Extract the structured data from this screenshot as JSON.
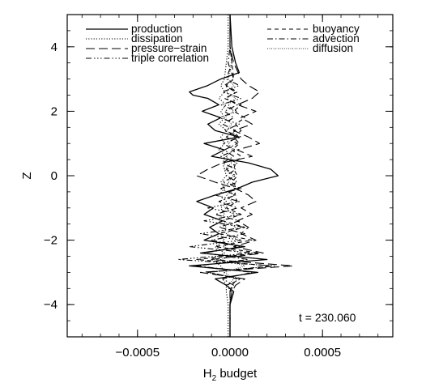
{
  "chart_data": {
    "type": "line",
    "title": "",
    "xlabel": "H",
    "xlabel_subscript": "2",
    "xlabel_suffix": " budget",
    "ylabel": "Z",
    "xlim": [
      -0.00088,
      0.00088
    ],
    "ylim": [
      -5,
      5
    ],
    "xticks": [
      -0.0005,
      0.0,
      0.0005
    ],
    "xtick_labels": [
      "−0.0005",
      "0.0000",
      "0.0005"
    ],
    "yticks": [
      -4,
      -2,
      0,
      2,
      4
    ],
    "ytick_labels": [
      "−4",
      "−2",
      "0",
      "2",
      "4"
    ],
    "grid": false,
    "legend_position": "top",
    "annotation": "t = 230.060",
    "series": [
      {
        "name": "production",
        "dash": "solid",
        "width": 1.3,
        "y": [
          5,
          4,
          3.5,
          3.2,
          3.0,
          2.8,
          2.6,
          2.5,
          2.4,
          2.2,
          2.0,
          1.8,
          1.6,
          1.4,
          1.2,
          1.0,
          0.8,
          0.6,
          0.4,
          0.2,
          0.0,
          -0.2,
          -0.4,
          -0.6,
          -0.8,
          -1.0,
          -1.2,
          -1.4,
          -1.6,
          -1.8,
          -2.0,
          -2.2,
          -2.4,
          -2.6,
          -2.8,
          -3.0,
          -3.2,
          -3.4,
          -3.6,
          -4.0,
          -5.0
        ],
        "x": [
          0.0,
          1e-05,
          3e-05,
          5e-05,
          -5e-05,
          -0.00012,
          -0.00022,
          -0.0002,
          -0.00012,
          -6e-05,
          -0.00015,
          -5e-05,
          -0.00012,
          -8e-05,
          5e-05,
          -0.00014,
          -3e-05,
          -0.0001,
          0.0001,
          0.00022,
          0.00026,
          0.00012,
          4e-05,
          -8e-05,
          -0.00018,
          -9e-05,
          -0.00014,
          -4e-05,
          -0.00011,
          -6e-05,
          -0.00014,
          8e-05,
          -0.00016,
          0.0002,
          -0.00022,
          0.00015,
          -8e-05,
          -2e-05,
          2e-05,
          0.0,
          0.0
        ]
      },
      {
        "name": "dissipation",
        "dash": "dot",
        "width": 1.1,
        "y": [
          5,
          4,
          3.5,
          3.0,
          2.8,
          2.6,
          2.4,
          2.2,
          2.0,
          1.8,
          1.6,
          1.4,
          1.2,
          1.0,
          0.8,
          0.6,
          0.4,
          0.2,
          0.0,
          -0.2,
          -0.4,
          -0.6,
          -0.8,
          -1.0,
          -1.2,
          -1.4,
          -1.6,
          -1.8,
          -2.0,
          -2.2,
          -2.4,
          -2.6,
          -2.8,
          -3.0,
          -3.2,
          -3.4,
          -3.6,
          -4.0,
          -5.0
        ],
        "x": [
          -1e-05,
          -1e-05,
          -2e-05,
          -3e-05,
          -5e-05,
          -3e-05,
          -6e-05,
          -2e-05,
          -5e-05,
          -3e-05,
          -6e-05,
          -2e-05,
          -5e-05,
          -3e-05,
          -6e-05,
          -2e-05,
          -4e-05,
          -3e-05,
          -2e-05,
          -5e-05,
          -3e-05,
          -6e-05,
          -2e-05,
          -5e-05,
          -3e-05,
          -6e-05,
          -2e-05,
          -5e-05,
          -3e-05,
          -8e-05,
          -3e-05,
          -0.0001,
          -5e-05,
          -3e-05,
          -4e-05,
          -2e-05,
          -2e-05,
          -1e-05,
          -1e-05
        ]
      },
      {
        "name": "pressure−strain",
        "dash": "longdash",
        "width": 1.1,
        "y": [
          5,
          4,
          3.5,
          3.0,
          2.8,
          2.6,
          2.4,
          2.2,
          2.0,
          1.8,
          1.6,
          1.4,
          1.2,
          1.0,
          0.8,
          0.6,
          0.4,
          0.2,
          0.0,
          -0.2,
          -0.4,
          -0.6,
          -0.8,
          -1.0,
          -1.2,
          -1.4,
          -1.6,
          -1.8,
          -2.0,
          -2.2,
          -2.4,
          -2.6,
          -2.8,
          -3.0,
          -3.2,
          -3.4,
          -3.6,
          -4.0,
          -5.0
        ],
        "x": [
          0.0,
          0.0,
          2e-05,
          6e-05,
          0.0001,
          0.00016,
          0.00012,
          4e-05,
          0.00014,
          6e-05,
          0.00012,
          2e-05,
          0.0001,
          0.00016,
          4e-05,
          0.00012,
          -4e-05,
          -0.00012,
          -0.00018,
          -8e-05,
          3e-05,
          0.0001,
          0.00014,
          6e-05,
          0.00012,
          4e-05,
          0.0001,
          6e-05,
          0.00014,
          2e-05,
          0.00018,
          -0.0001,
          0.00034,
          -0.00016,
          8e-05,
          3e-05,
          1e-05,
          0.0,
          0.0
        ]
      },
      {
        "name": "triple correlation",
        "dash": "dashdotdotdot",
        "width": 1.1,
        "y": [
          5,
          4,
          3.5,
          3.0,
          2.8,
          2.6,
          2.4,
          2.2,
          2.0,
          1.8,
          1.6,
          1.4,
          1.2,
          1.0,
          0.8,
          0.6,
          0.4,
          0.2,
          0.0,
          -0.2,
          -0.4,
          -0.6,
          -0.8,
          -1.0,
          -1.2,
          -1.4,
          -1.6,
          -1.8,
          -2.0,
          -2.2,
          -2.4,
          -2.6,
          -2.8,
          -3.0,
          -3.2,
          -3.4,
          -3.6,
          -4.0,
          -5.0
        ],
        "x": [
          0.0,
          0.0,
          1e-05,
          -2e-05,
          5e-05,
          -4e-05,
          6e-05,
          -5e-05,
          4e-05,
          -6e-05,
          5e-05,
          -3e-05,
          6e-05,
          -4e-05,
          3e-05,
          -5e-05,
          4e-05,
          -2e-05,
          3e-05,
          -4e-05,
          6e-05,
          -8e-05,
          5e-05,
          -0.00012,
          6e-05,
          -0.00014,
          8e-05,
          -0.00016,
          6e-05,
          -0.00022,
          0.00012,
          -0.00028,
          0.00024,
          -0.00012,
          6e-05,
          -2e-05,
          1e-05,
          0.0,
          0.0
        ]
      },
      {
        "name": "buoyancy",
        "dash": "dash",
        "width": 1.1,
        "y": [
          5,
          4,
          3.5,
          3.0,
          2.8,
          2.6,
          2.4,
          2.2,
          2.0,
          1.8,
          1.6,
          1.4,
          1.2,
          1.0,
          0.8,
          0.6,
          0.4,
          0.2,
          0.0,
          -0.2,
          -0.4,
          -0.6,
          -0.8,
          -1.0,
          -1.2,
          -1.4,
          -1.6,
          -1.8,
          -2.0,
          -2.2,
          -2.4,
          -2.6,
          -2.8,
          -3.0,
          -3.2,
          -3.4,
          -3.6,
          -4.0,
          -5.0
        ],
        "x": [
          0.0,
          0.0,
          1e-05,
          2e-05,
          -2e-05,
          4e-05,
          -3e-05,
          6e-05,
          2e-05,
          8e-05,
          3e-05,
          6e-05,
          2e-05,
          5e-05,
          1e-05,
          6e-05,
          3e-05,
          2e-05,
          4e-05,
          1e-05,
          5e-05,
          2e-05,
          4e-05,
          -2e-05,
          6e-05,
          -4e-05,
          8e-05,
          -6e-05,
          0.00012,
          -8e-05,
          0.00016,
          -0.00018,
          0.00022,
          -0.00012,
          4e-05,
          1e-05,
          0.0,
          0.0,
          0.0
        ]
      },
      {
        "name": "advection",
        "dash": "dashdot",
        "width": 1.1,
        "y": [
          5,
          4,
          3.5,
          3.0,
          2.8,
          2.6,
          2.4,
          2.2,
          2.0,
          1.8,
          1.6,
          1.4,
          1.2,
          1.0,
          0.8,
          0.6,
          0.4,
          0.2,
          0.0,
          -0.2,
          -0.4,
          -0.6,
          -0.8,
          -1.0,
          -1.2,
          -1.4,
          -1.6,
          -1.8,
          -2.0,
          -2.2,
          -2.4,
          -2.6,
          -2.8,
          -3.0,
          -3.2,
          -3.4,
          -3.6,
          -4.0,
          -5.0
        ],
        "x": [
          0.0,
          0.0,
          -1e-05,
          2e-05,
          -3e-05,
          3e-05,
          -2e-05,
          4e-05,
          -3e-05,
          2e-05,
          -4e-05,
          3e-05,
          -2e-05,
          4e-05,
          -3e-05,
          2e-05,
          -4e-05,
          3e-05,
          -2e-05,
          4e-05,
          -5e-05,
          3e-05,
          -6e-05,
          4e-05,
          -8e-05,
          5e-05,
          -6e-05,
          8e-05,
          -0.0001,
          6e-05,
          -0.00014,
          0.0001,
          -0.00018,
          0.00012,
          -4e-05,
          2e-05,
          0.0,
          0.0,
          0.0
        ]
      },
      {
        "name": "diffusion",
        "dash": "finedot",
        "width": 1.0,
        "y": [
          5,
          4,
          3.5,
          3.0,
          2.8,
          2.6,
          2.4,
          2.2,
          2.0,
          1.8,
          1.6,
          1.4,
          1.2,
          1.0,
          0.8,
          0.6,
          0.4,
          0.2,
          0.0,
          -0.2,
          -0.4,
          -0.6,
          -0.8,
          -1.0,
          -1.2,
          -1.4,
          -1.6,
          -1.8,
          -2.0,
          -2.2,
          -2.4,
          -2.6,
          -2.8,
          -3.0,
          -3.2,
          -3.4,
          -3.6,
          -4.0,
          -5.0
        ],
        "x": [
          0.0,
          0.0,
          1e-05,
          -1e-05,
          2e-05,
          -2e-05,
          3e-05,
          -1e-05,
          2e-05,
          -3e-05,
          1e-05,
          -2e-05,
          3e-05,
          -1e-05,
          2e-05,
          -2e-05,
          1e-05,
          -3e-05,
          2e-05,
          -1e-05,
          3e-05,
          -2e-05,
          1e-05,
          -3e-05,
          2e-05,
          -4e-05,
          3e-05,
          -2e-05,
          5e-05,
          -4e-05,
          6e-05,
          -5e-05,
          8e-05,
          -3e-05,
          2e-05,
          -1e-05,
          0.0,
          0.0,
          0.0
        ]
      }
    ]
  }
}
